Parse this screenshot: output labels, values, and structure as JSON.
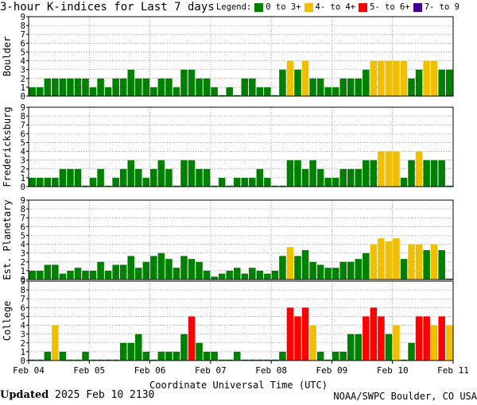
{
  "header": {
    "title": "3-hour K-indices for Last 7 days",
    "legend_label": "Legend:",
    "legend": [
      {
        "label": "0 to 3+",
        "color": "#008000"
      },
      {
        "label": "4- to 4+",
        "color": "#f0c000"
      },
      {
        "label": "5- to 6+",
        "color": "#ff0000"
      },
      {
        "label": "7- to 9",
        "color": "#400090"
      }
    ]
  },
  "footer": {
    "updated_label": "Updated",
    "updated_time": "2025 Feb 10 2130",
    "credit": "NOAA/SWPC Boulder, CO USA"
  },
  "chart_data": {
    "type": "bar",
    "title": "3-hour K-indices for Last 7 days",
    "xlabel": "Coordinate Universal Time (UTC)",
    "x_ticks": [
      "Feb 04",
      "Feb 05",
      "Feb 06",
      "Feb 07",
      "Feb 08",
      "Feb 09",
      "Feb 10",
      "Feb 11"
    ],
    "y_ticks": [
      0,
      1,
      2,
      3,
      4,
      5,
      6,
      7,
      8,
      9
    ],
    "ylim": [
      0,
      9
    ],
    "interval_hours": 3,
    "grid": true,
    "color_scale": [
      {
        "range": "0 to 3+",
        "color": "#008000"
      },
      {
        "range": "4- to 4+",
        "color": "#f0c000"
      },
      {
        "range": "5- to 6+",
        "color": "#ff0000"
      },
      {
        "range": "7- to 9",
        "color": "#400090"
      }
    ],
    "panels": [
      {
        "station": "Boulder",
        "values": [
          1,
          1,
          2,
          2,
          2,
          2,
          2,
          2,
          1,
          2,
          1,
          2,
          2,
          3,
          2,
          2,
          1,
          2,
          2,
          1,
          3,
          3,
          2,
          2,
          1,
          0,
          1,
          0,
          2,
          2,
          1,
          1,
          0,
          3,
          4,
          3,
          4,
          2,
          2,
          1,
          1,
          2,
          2,
          2,
          3,
          4,
          4,
          4,
          4,
          4,
          2,
          3,
          4,
          4,
          3,
          3
        ]
      },
      {
        "station": "Fredericksburg",
        "values": [
          1,
          1,
          1,
          1,
          2,
          2,
          2,
          0,
          1,
          2,
          0,
          1,
          2,
          3,
          2,
          1,
          2,
          3,
          2,
          0,
          3,
          3,
          2,
          2,
          0,
          1,
          0,
          1,
          1,
          1,
          2,
          1,
          0,
          0,
          3,
          3,
          2,
          3,
          2,
          1,
          1,
          2,
          2,
          2,
          3,
          3,
          4,
          4,
          4,
          1,
          3,
          4,
          3,
          3,
          3,
          0
        ]
      },
      {
        "station": "Est. Planetary",
        "values": [
          1,
          1,
          1.67,
          1.67,
          0.67,
          1,
          1.33,
          1,
          1,
          2,
          1,
          1.67,
          1.67,
          2.67,
          1.33,
          2,
          2.67,
          3,
          2.33,
          1.33,
          2.67,
          2.33,
          2,
          1,
          0.33,
          0.67,
          1,
          1.33,
          0.67,
          1.33,
          1,
          0.67,
          1,
          2.67,
          3.67,
          2.67,
          3.33,
          2,
          1.67,
          1.33,
          1.33,
          2,
          2,
          2.33,
          3,
          4,
          4.67,
          4.33,
          4.67,
          2.33,
          4,
          4,
          3.33,
          4,
          3.33,
          0
        ]
      },
      {
        "station": "College",
        "values": [
          0,
          0,
          1,
          4,
          1,
          0,
          0,
          1,
          0,
          0,
          0,
          0,
          2,
          2,
          3,
          1,
          0,
          1,
          1,
          1,
          3,
          5,
          2,
          1,
          1,
          0,
          0,
          1,
          0,
          0,
          0,
          0,
          0,
          1,
          6,
          5,
          6,
          4,
          1,
          0,
          1,
          1,
          3,
          3,
          5,
          6,
          5,
          3,
          4,
          0,
          2,
          5,
          5,
          4,
          5,
          4
        ]
      }
    ]
  }
}
